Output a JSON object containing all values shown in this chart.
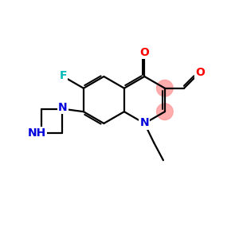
{
  "background": "#ffffff",
  "bc": "#000000",
  "nc": "#0000dd",
  "oc": "#ff0000",
  "fc": "#00bbbb",
  "hc": "#ff9999",
  "lw": 1.6,
  "fs": 10,
  "figsize": [
    3.0,
    3.0
  ],
  "dpi": 100,
  "xlim": [
    -1,
    11
  ],
  "ylim": [
    -1,
    11
  ],
  "bl": 1.2
}
